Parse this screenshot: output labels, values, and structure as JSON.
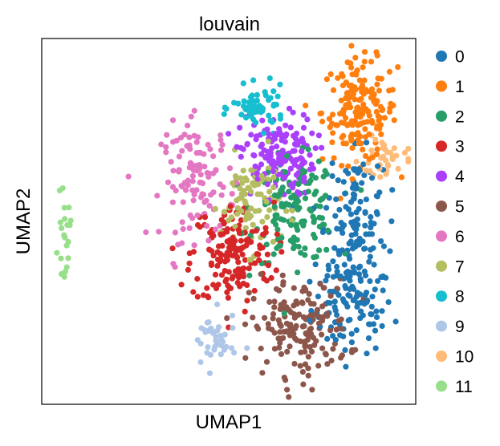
{
  "chart_data": {
    "type": "scatter",
    "title": "louvain",
    "xlabel": "UMAP1",
    "ylabel": "UMAP2",
    "xlim": [
      0,
      100
    ],
    "ylim": [
      0,
      100
    ],
    "grid": false,
    "ticks": false,
    "legend_position": "right",
    "series": [
      {
        "name": "0",
        "color": "#1f77b4",
        "clusters": [
          {
            "cx": 83,
            "cy": 26,
            "sx": 5.5,
            "sy": 6,
            "n": 95
          },
          {
            "cx": 83,
            "cy": 45,
            "sx": 4.5,
            "sy": 8,
            "n": 95
          },
          {
            "cx": 84,
            "cy": 60,
            "sx": 3.5,
            "sy": 5,
            "n": 40
          }
        ]
      },
      {
        "name": "1",
        "color": "#ff7f0e",
        "clusters": [
          {
            "cx": 85,
            "cy": 80,
            "sx": 5,
            "sy": 7,
            "n": 170
          }
        ]
      },
      {
        "name": "2",
        "color": "#279e68",
        "clusters": [
          {
            "cx": 68,
            "cy": 53,
            "sx": 5.5,
            "sy": 7,
            "n": 150
          }
        ]
      },
      {
        "name": "3",
        "color": "#d62728",
        "clusters": [
          {
            "cx": 51,
            "cy": 41,
            "sx": 5.5,
            "sy": 7,
            "n": 165
          }
        ]
      },
      {
        "name": "4",
        "color": "#aa40fc",
        "clusters": [
          {
            "cx": 63,
            "cy": 68,
            "sx": 5,
            "sy": 5.5,
            "n": 150
          }
        ]
      },
      {
        "name": "5",
        "color": "#8c564b",
        "clusters": [
          {
            "cx": 69,
            "cy": 21,
            "sx": 6.5,
            "sy": 6.5,
            "n": 165
          }
        ]
      },
      {
        "name": "6",
        "color": "#e377c2",
        "clusters": [
          {
            "cx": 42,
            "cy": 61,
            "sx": 5,
            "sy": 8,
            "n": 115
          }
        ]
      },
      {
        "name": "7",
        "color": "#b5bd61",
        "clusters": [
          {
            "cx": 56,
            "cy": 55,
            "sx": 4,
            "sy": 6.5,
            "n": 90
          }
        ]
      },
      {
        "name": "8",
        "color": "#17becf",
        "clusters": [
          {
            "cx": 58,
            "cy": 81,
            "sx": 3.5,
            "sy": 2.8,
            "n": 60
          }
        ]
      },
      {
        "name": "9",
        "color": "#aec7e8",
        "clusters": [
          {
            "cx": 46,
            "cy": 17,
            "sx": 3,
            "sy": 4,
            "n": 40
          }
        ]
      },
      {
        "name": "10",
        "color": "#ffbb78",
        "clusters": [
          {
            "cx": 92,
            "cy": 67,
            "sx": 3.5,
            "sy": 3.5,
            "n": 35
          }
        ]
      },
      {
        "name": "11",
        "color": "#98df8a",
        "clusters": [
          {
            "cx": 6,
            "cy": 46,
            "sx": 0.8,
            "sy": 5,
            "n": 22
          }
        ]
      }
    ]
  }
}
